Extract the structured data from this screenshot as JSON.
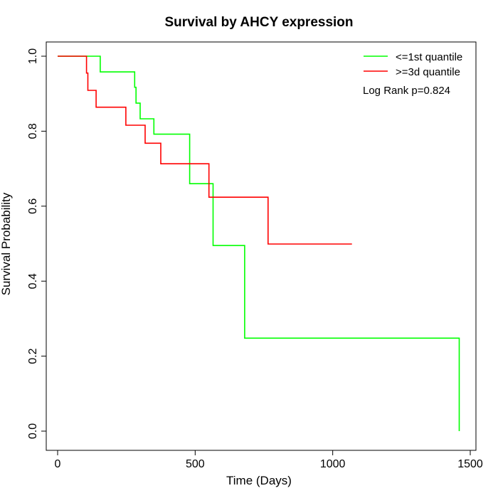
{
  "chart_data": {
    "type": "line",
    "title": "Survival by AHCY expression",
    "xlabel": "Time (Days)",
    "ylabel": "Survival Probability",
    "xlim": [
      0,
      1500
    ],
    "ylim": [
      0,
      1.0
    ],
    "xticks": [
      0,
      500,
      1000,
      1500
    ],
    "xtick_labels": [
      "0",
      "500",
      "1000",
      "1500"
    ],
    "yticks": [
      0.0,
      0.2,
      0.4,
      0.6,
      0.8,
      1.0
    ],
    "ytick_labels": [
      "0.0",
      "0.2",
      "0.4",
      "0.6",
      "0.8",
      "1.0"
    ],
    "grid": false,
    "legend_position": "top-right",
    "annotation": "Log Rank p=0.824",
    "series": [
      {
        "name": "<=1st quantile",
        "color": "#00ff00",
        "step_points": [
          [
            0,
            1.0
          ],
          [
            155,
            1.0
          ],
          [
            155,
            0.958
          ],
          [
            280,
            0.958
          ],
          [
            280,
            0.917
          ],
          [
            285,
            0.917
          ],
          [
            285,
            0.875
          ],
          [
            300,
            0.875
          ],
          [
            300,
            0.833
          ],
          [
            350,
            0.833
          ],
          [
            350,
            0.792
          ],
          [
            480,
            0.792
          ],
          [
            480,
            0.66
          ],
          [
            565,
            0.66
          ],
          [
            565,
            0.495
          ],
          [
            680,
            0.495
          ],
          [
            680,
            0.248
          ],
          [
            1460,
            0.248
          ],
          [
            1460,
            0.0
          ]
        ]
      },
      {
        "name": ">=3d quantile",
        "color": "#ff0000",
        "step_points": [
          [
            0,
            1.0
          ],
          [
            105,
            1.0
          ],
          [
            105,
            0.955
          ],
          [
            110,
            0.955
          ],
          [
            110,
            0.909
          ],
          [
            140,
            0.909
          ],
          [
            140,
            0.864
          ],
          [
            248,
            0.864
          ],
          [
            248,
            0.816
          ],
          [
            318,
            0.816
          ],
          [
            318,
            0.768
          ],
          [
            375,
            0.768
          ],
          [
            375,
            0.713
          ],
          [
            550,
            0.713
          ],
          [
            550,
            0.624
          ],
          [
            765,
            0.624
          ],
          [
            765,
            0.499
          ],
          [
            1070,
            0.499
          ]
        ]
      }
    ]
  }
}
